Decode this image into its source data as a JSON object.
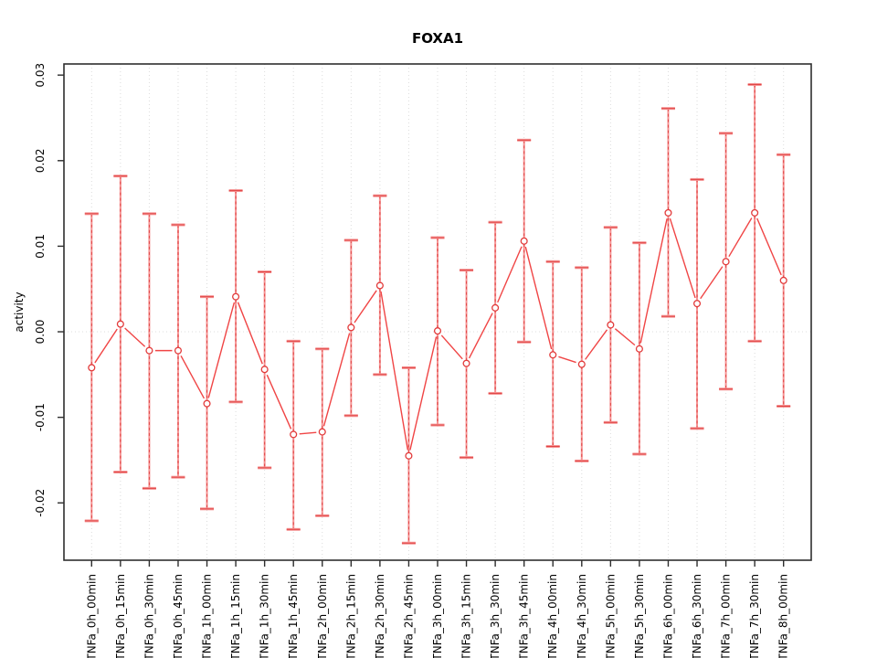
{
  "chart_data": {
    "type": "line",
    "title": "FOXA1",
    "xlabel": "",
    "ylabel": "activity",
    "legend": "none",
    "categories": [
      "TNFa_0h_00min",
      "TNFa_0h_15min",
      "TNFa_0h_30min",
      "TNFa_0h_45min",
      "TNFa_1h_00min",
      "TNFa_1h_15min",
      "TNFa_1h_30min",
      "TNFa_1h_45min",
      "TNFa_2h_00min",
      "TNFa_2h_15min",
      "TNFa_2h_30min",
      "TNFa_2h_45min",
      "TNFa_3h_00min",
      "TNFa_3h_15min",
      "TNFa_3h_30min",
      "TNFa_3h_45min",
      "TNFa_4h_00min",
      "TNFa_4h_30min",
      "TNFa_5h_00min",
      "TNFa_5h_30min",
      "TNFa_6h_00min",
      "TNFa_6h_30min",
      "TNFa_7h_00min",
      "TNFa_7h_30min",
      "TNFa_8h_00min"
    ],
    "series": [
      {
        "name": "activity",
        "values": [
          -0.0042,
          0.0009,
          -0.0022,
          -0.0022,
          -0.0084,
          0.0041,
          -0.0044,
          -0.012,
          -0.0117,
          0.0005,
          0.0054,
          -0.0145,
          0.0001,
          -0.0037,
          0.0028,
          0.0106,
          -0.0027,
          -0.0038,
          0.0008,
          -0.002,
          0.0139,
          0.0033,
          0.0082,
          0.0139,
          0.006
        ],
        "error_upper": [
          0.0138,
          0.0182,
          0.0138,
          0.0125,
          0.0041,
          0.0165,
          0.007,
          -0.0011,
          -0.002,
          0.0107,
          0.0159,
          -0.0042,
          0.011,
          0.0072,
          0.0128,
          0.0224,
          0.0082,
          0.0075,
          0.0122,
          0.0104,
          0.0261,
          0.0178,
          0.0232,
          0.0289,
          0.0207
        ],
        "error_lower": [
          -0.0221,
          -0.0164,
          -0.0183,
          -0.017,
          -0.0207,
          -0.0082,
          -0.0159,
          -0.0231,
          -0.0215,
          -0.0098,
          -0.005,
          -0.0247,
          -0.0109,
          -0.0147,
          -0.0072,
          -0.0012,
          -0.0134,
          -0.0151,
          -0.0106,
          -0.0143,
          0.0018,
          -0.0113,
          -0.0067,
          -0.0011,
          -0.0087
        ]
      }
    ],
    "ylim": [
      -0.0267,
      0.0313
    ],
    "yticks": [
      -0.02,
      -0.01,
      0.0,
      0.01,
      0.02,
      0.03
    ],
    "grid": {
      "vertical_dotted": true,
      "horizontal_zero_dotted": true
    },
    "colors": {
      "errorbar_light": "#f59393",
      "errorbar_dark": "#e04343",
      "point": "#e23b3b",
      "line": "#f04545",
      "grid": "#dcdcdc",
      "axis": "#2e2e2e",
      "text": "#000000"
    }
  }
}
